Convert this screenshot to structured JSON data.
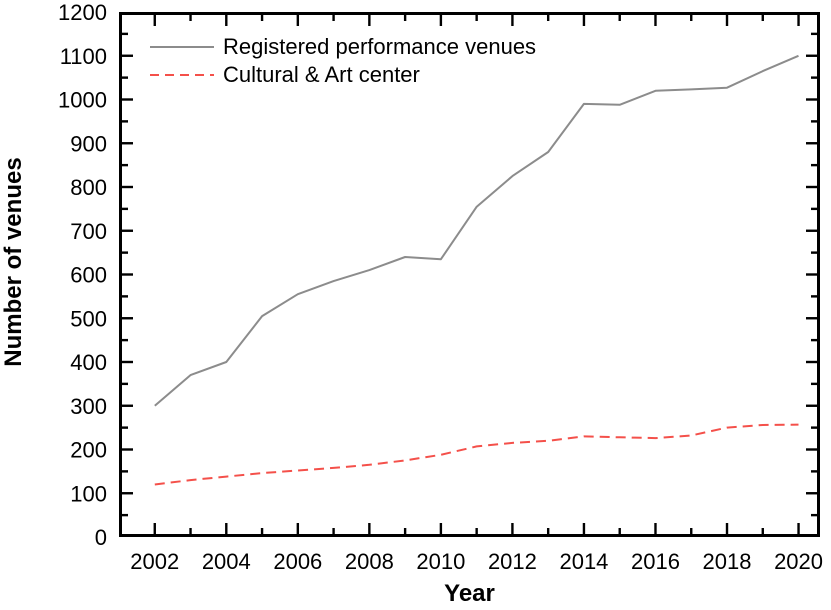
{
  "chart_data": {
    "type": "line",
    "title": "",
    "xlabel": "Year",
    "ylabel": "Number of venues",
    "x": [
      2002,
      2003,
      2004,
      2005,
      2006,
      2007,
      2008,
      2009,
      2010,
      2011,
      2012,
      2013,
      2014,
      2015,
      2016,
      2017,
      2018,
      2019,
      2020
    ],
    "series": [
      {
        "name": "Registered performance venues",
        "color": "#8c8c8c",
        "style": "solid",
        "values": [
          300,
          370,
          400,
          505,
          555,
          585,
          610,
          640,
          635,
          755,
          825,
          880,
          990,
          988,
          1020,
          1023,
          1027,
          1065,
          1100
        ]
      },
      {
        "name": "Cultural & Art center",
        "color": "#f4504a",
        "style": "dashed",
        "values": [
          120,
          130,
          138,
          146,
          152,
          158,
          165,
          175,
          188,
          207,
          215,
          220,
          230,
          228,
          226,
          232,
          250,
          256,
          257
        ]
      }
    ],
    "xlim": [
      2001.0,
      2020.6
    ],
    "ylim": [
      0,
      1200
    ],
    "x_ticks": [
      2002,
      2004,
      2006,
      2008,
      2010,
      2012,
      2014,
      2016,
      2018,
      2020
    ],
    "y_ticks": [
      0,
      100,
      200,
      300,
      400,
      500,
      600,
      700,
      800,
      900,
      1000,
      1100,
      1200
    ],
    "x_minor_step": 1,
    "y_minor_step": 50,
    "grid": false,
    "legend_position": "top-left-inside",
    "axis_color": "#000000",
    "background": "#ffffff"
  }
}
